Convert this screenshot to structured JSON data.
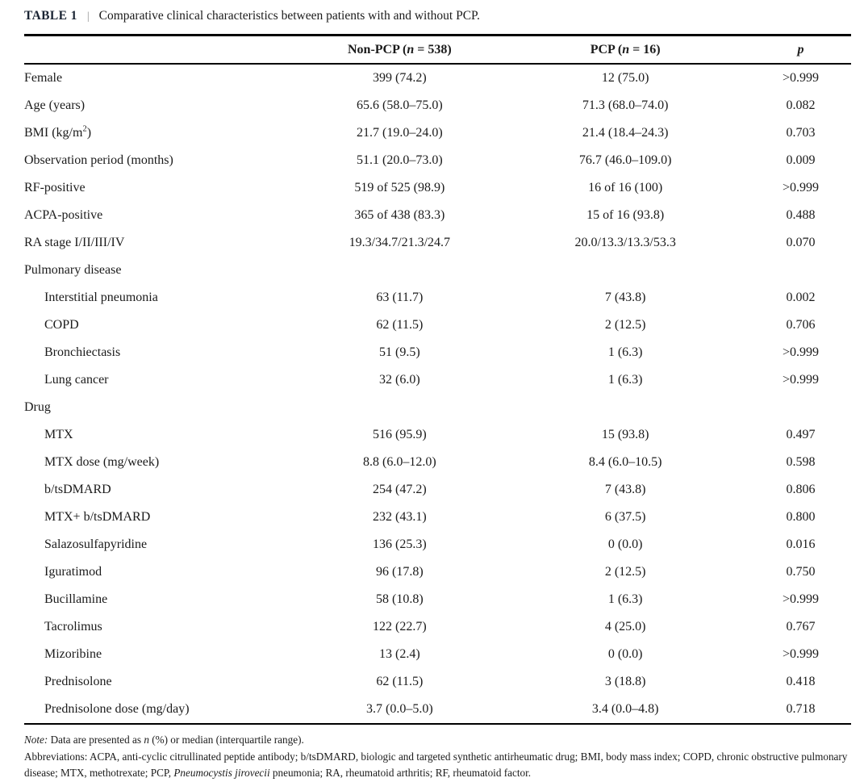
{
  "title": {
    "label": "TABLE 1",
    "separator": "|",
    "caption": "Comparative clinical characteristics between patients with and without PCP."
  },
  "table": {
    "columns": [
      {
        "name": "non-pcp",
        "segments": [
          {
            "t": "Non-PCP ("
          },
          {
            "t": "n",
            "i": true
          },
          {
            "t": " = 538)"
          }
        ]
      },
      {
        "name": "pcp",
        "segments": [
          {
            "t": "PCP ("
          },
          {
            "t": "n",
            "i": true
          },
          {
            "t": " = 16)"
          }
        ]
      },
      {
        "name": "p",
        "segments": [
          {
            "t": "p",
            "i": true
          }
        ]
      }
    ],
    "rows": [
      {
        "label": [
          {
            "t": "Female"
          }
        ],
        "indent": 0,
        "section": false,
        "values": [
          "399 (74.2)",
          "12 (75.0)",
          ">0.999"
        ]
      },
      {
        "label": [
          {
            "t": "Age (years)"
          }
        ],
        "indent": 0,
        "section": false,
        "values": [
          "65.6 (58.0–75.0)",
          "71.3 (68.0–74.0)",
          "0.082"
        ]
      },
      {
        "label": [
          {
            "t": "BMI (kg/m"
          },
          {
            "t": "2",
            "sup": true
          },
          {
            "t": ")"
          }
        ],
        "indent": 0,
        "section": false,
        "values": [
          "21.7 (19.0–24.0)",
          "21.4 (18.4–24.3)",
          "0.703"
        ]
      },
      {
        "label": [
          {
            "t": "Observation period (months)"
          }
        ],
        "indent": 0,
        "section": false,
        "values": [
          "51.1 (20.0–73.0)",
          "76.7 (46.0–109.0)",
          "0.009"
        ]
      },
      {
        "label": [
          {
            "t": "RF-positive"
          }
        ],
        "indent": 0,
        "section": false,
        "values": [
          "519 of 525 (98.9)",
          "16 of 16 (100)",
          ">0.999"
        ]
      },
      {
        "label": [
          {
            "t": "ACPA-positive"
          }
        ],
        "indent": 0,
        "section": false,
        "values": [
          "365 of 438 (83.3)",
          "15 of 16 (93.8)",
          "0.488"
        ]
      },
      {
        "label": [
          {
            "t": "RA stage I/II/III/IV"
          }
        ],
        "indent": 0,
        "section": false,
        "values": [
          "19.3/34.7/21.3/24.7",
          "20.0/13.3/13.3/53.3",
          "0.070"
        ]
      },
      {
        "label": [
          {
            "t": "Pulmonary disease"
          }
        ],
        "indent": 0,
        "section": true,
        "values": [
          "",
          "",
          ""
        ]
      },
      {
        "label": [
          {
            "t": "Interstitial pneumonia"
          }
        ],
        "indent": 1,
        "section": false,
        "values": [
          "63 (11.7)",
          "7 (43.8)",
          "0.002"
        ]
      },
      {
        "label": [
          {
            "t": "COPD"
          }
        ],
        "indent": 1,
        "section": false,
        "values": [
          "62 (11.5)",
          "2 (12.5)",
          "0.706"
        ]
      },
      {
        "label": [
          {
            "t": "Bronchiectasis"
          }
        ],
        "indent": 1,
        "section": false,
        "values": [
          "51 (9.5)",
          "1 (6.3)",
          ">0.999"
        ]
      },
      {
        "label": [
          {
            "t": "Lung cancer"
          }
        ],
        "indent": 1,
        "section": false,
        "values": [
          "32 (6.0)",
          "1 (6.3)",
          ">0.999"
        ]
      },
      {
        "label": [
          {
            "t": "Drug"
          }
        ],
        "indent": 0,
        "section": true,
        "values": [
          "",
          "",
          ""
        ]
      },
      {
        "label": [
          {
            "t": "MTX"
          }
        ],
        "indent": 1,
        "section": false,
        "values": [
          "516 (95.9)",
          "15 (93.8)",
          "0.497"
        ]
      },
      {
        "label": [
          {
            "t": "MTX dose (mg/week)"
          }
        ],
        "indent": 1,
        "section": false,
        "values": [
          "8.8 (6.0–12.0)",
          "8.4 (6.0–10.5)",
          "0.598"
        ]
      },
      {
        "label": [
          {
            "t": "b/tsDMARD"
          }
        ],
        "indent": 1,
        "section": false,
        "values": [
          "254 (47.2)",
          "7 (43.8)",
          "0.806"
        ]
      },
      {
        "label": [
          {
            "t": "MTX+ b/tsDMARD"
          }
        ],
        "indent": 1,
        "section": false,
        "values": [
          "232 (43.1)",
          "6 (37.5)",
          "0.800"
        ]
      },
      {
        "label": [
          {
            "t": "Salazosulfapyridine"
          }
        ],
        "indent": 1,
        "section": false,
        "values": [
          "136 (25.3)",
          "0 (0.0)",
          "0.016"
        ]
      },
      {
        "label": [
          {
            "t": "Iguratimod"
          }
        ],
        "indent": 1,
        "section": false,
        "values": [
          "96 (17.8)",
          "2 (12.5)",
          "0.750"
        ]
      },
      {
        "label": [
          {
            "t": "Bucillamine"
          }
        ],
        "indent": 1,
        "section": false,
        "values": [
          "58 (10.8)",
          "1 (6.3)",
          ">0.999"
        ]
      },
      {
        "label": [
          {
            "t": "Tacrolimus"
          }
        ],
        "indent": 1,
        "section": false,
        "values": [
          "122 (22.7)",
          "4 (25.0)",
          "0.767"
        ]
      },
      {
        "label": [
          {
            "t": "Mizoribine"
          }
        ],
        "indent": 1,
        "section": false,
        "values": [
          "13 (2.4)",
          "0 (0.0)",
          ">0.999"
        ]
      },
      {
        "label": [
          {
            "t": "Prednisolone"
          }
        ],
        "indent": 1,
        "section": false,
        "values": [
          "62 (11.5)",
          "3 (18.8)",
          "0.418"
        ]
      },
      {
        "label": [
          {
            "t": "Prednisolone dose (mg/day)"
          }
        ],
        "indent": 1,
        "section": false,
        "values": [
          "3.7 (0.0–5.0)",
          "3.4 (0.0–4.8)",
          "0.718"
        ]
      }
    ]
  },
  "footnotes": {
    "note": [
      {
        "t": "Note:",
        "i": true
      },
      {
        "t": " Data are presented as "
      },
      {
        "t": "n",
        "i": true
      },
      {
        "t": " (%) or median (interquartile range)."
      }
    ],
    "abbreviations": [
      {
        "t": "Abbreviations: ACPA, anti-cyclic citrullinated peptide antibody; b/tsDMARD, biologic and targeted synthetic antirheumatic drug; BMI, body mass index; COPD, chronic obstructive pulmonary disease; MTX, methotrexate; PCP, "
      },
      {
        "t": "Pneumocystis jirovecii",
        "i": true
      },
      {
        "t": " pneumonia; RA, rheumatoid arthritis; RF, rheumatoid factor."
      }
    ]
  }
}
